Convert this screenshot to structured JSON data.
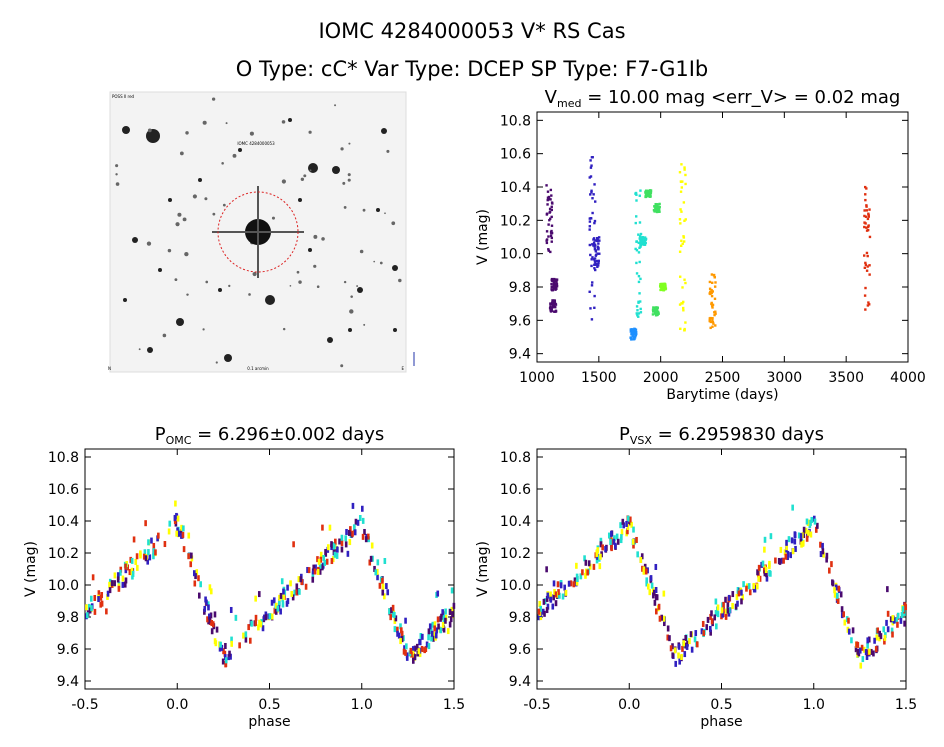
{
  "header": {
    "title": "IOMC 4284000053   V* RS Cas",
    "subtitle": "O Type: cC*  Var Type: DCEP  SP Type: F7-G1Ib"
  },
  "finder": {
    "corner_top_left": "POSS II red",
    "label_target": "IOMC 4284000053",
    "corner_bottom_left": "N",
    "label_bottom": "0.1 arcmin",
    "corner_bottom_right": "E"
  },
  "chart_data": [
    {
      "type": "scatter",
      "id": "lightcurve",
      "title": {
        "prefix": "V",
        "sub": "med",
        "rest": " = 10.00 mag <err_V> = 0.02 mag"
      },
      "xlabel": "Barytime (days)",
      "ylabel": "V (mag)",
      "xlim": [
        1000,
        4000
      ],
      "ylim": [
        10.85,
        9.35
      ],
      "xticks": [
        1000,
        1500,
        2000,
        2500,
        3000,
        3500,
        4000
      ],
      "yticks": [
        "9.4",
        "9.6",
        "9.8",
        "10.0",
        "10.2",
        "10.4",
        "10.6",
        "10.8"
      ],
      "series": [
        {
          "color": "#4a0a6e",
          "groups": [
            [
              1100,
              10.0,
              10.42
            ],
            [
              1130,
              9.65,
              9.72
            ],
            [
              1140,
              9.78,
              9.85
            ]
          ]
        },
        {
          "color": "#3020c0",
          "groups": [
            [
              1450,
              9.6,
              10.62
            ],
            [
              1480,
              9.9,
              10.1
            ]
          ]
        },
        {
          "color": "#1e90ff",
          "groups": [
            [
              1780,
              9.48,
              9.55
            ]
          ]
        },
        {
          "color": "#20e0d0",
          "groups": [
            [
              1820,
              9.62,
              10.45
            ],
            [
              1860,
              10.05,
              10.1
            ]
          ]
        },
        {
          "color": "#40e060",
          "groups": [
            [
              1900,
              10.34,
              10.38
            ],
            [
              1960,
              9.63,
              9.68
            ],
            [
              1970,
              10.25,
              10.3
            ]
          ]
        },
        {
          "color": "#80ff20",
          "groups": [
            [
              2020,
              9.78,
              9.82
            ]
          ]
        },
        {
          "color": "#ffff00",
          "groups": [
            [
              2180,
              9.5,
              10.62
            ]
          ]
        },
        {
          "color": "#ff9900",
          "groups": [
            [
              2420,
              9.55,
              9.88
            ]
          ]
        },
        {
          "color": "#e03010",
          "groups": [
            [
              3670,
              9.6,
              10.4
            ]
          ]
        }
      ]
    },
    {
      "type": "scatter",
      "id": "phase_omc",
      "title": {
        "prefix": "P",
        "sub": "OMC",
        "rest": " = 6.296±0.002 days"
      },
      "xlabel": "phase",
      "ylabel": "V (mag)",
      "xlim": [
        -0.5,
        1.5
      ],
      "ylim": [
        10.85,
        9.35
      ],
      "xticks": [
        "-0.5",
        "0.0",
        "0.5",
        "1.0",
        "1.5"
      ],
      "yticks": [
        "9.4",
        "9.6",
        "9.8",
        "10.0",
        "10.2",
        "10.4",
        "10.6",
        "10.8"
      ]
    },
    {
      "type": "scatter",
      "id": "phase_vsx",
      "title": {
        "prefix": "P",
        "sub": "VSX",
        "rest": " = 6.2959830 days"
      },
      "xlabel": "phase",
      "ylabel": "V (mag)",
      "xlim": [
        -0.5,
        1.5
      ],
      "ylim": [
        10.85,
        9.35
      ],
      "xticks": [
        "-0.5",
        "0.0",
        "0.5",
        "1.0",
        "1.5"
      ],
      "yticks": [
        "9.4",
        "9.6",
        "9.8",
        "10.0",
        "10.2",
        "10.4",
        "10.6",
        "10.8"
      ]
    }
  ],
  "phase_colors": [
    "#4a0a6e",
    "#3020c0",
    "#20e0d0",
    "#ffff00",
    "#e03010"
  ]
}
